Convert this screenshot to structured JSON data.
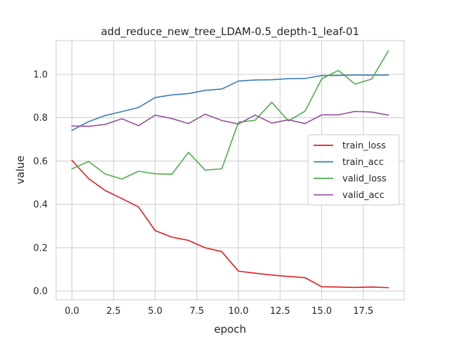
{
  "chart_data": {
    "type": "line",
    "title": "add_reduce_new_tree_LDAM-0.5_depth-1_leaf-01",
    "xlabel": "epoch",
    "ylabel": "value",
    "xlim": [
      -0.95,
      19.95
    ],
    "ylim": [
      -0.04,
      1.155
    ],
    "xticks": [
      0.0,
      2.5,
      5.0,
      7.5,
      10.0,
      12.5,
      15.0,
      17.5
    ],
    "xtick_labels": [
      "0.0",
      "2.5",
      "5.0",
      "7.5",
      "10.0",
      "12.5",
      "15.0",
      "17.5"
    ],
    "yticks": [
      0.0,
      0.2,
      0.4,
      0.6,
      0.8,
      1.0
    ],
    "ytick_labels": [
      "0.0",
      "0.2",
      "0.4",
      "0.6",
      "0.8",
      "1.0"
    ],
    "grid": true,
    "legend_position": "center-right",
    "x": [
      0,
      1,
      2,
      3,
      4,
      5,
      6,
      7,
      8,
      9,
      10,
      11,
      12,
      13,
      14,
      15,
      16,
      17,
      18,
      19
    ],
    "series": [
      {
        "name": "train_loss",
        "color": "#e41a1c",
        "values": [
          0.603,
          0.519,
          0.464,
          0.427,
          0.388,
          0.279,
          0.249,
          0.234,
          0.2,
          0.182,
          0.092,
          0.083,
          0.074,
          0.068,
          0.062,
          0.02,
          0.019,
          0.017,
          0.019,
          0.016
        ]
      },
      {
        "name": "train_acc",
        "color": "#377eb8",
        "values": [
          0.741,
          0.782,
          0.81,
          0.828,
          0.847,
          0.893,
          0.905,
          0.911,
          0.926,
          0.932,
          0.969,
          0.974,
          0.975,
          0.98,
          0.981,
          0.994,
          0.995,
          0.997,
          0.996,
          0.997
        ]
      },
      {
        "name": "valid_loss",
        "color": "#4daf4a",
        "values": [
          0.564,
          0.598,
          0.54,
          0.517,
          0.553,
          0.541,
          0.539,
          0.64,
          0.558,
          0.564,
          0.779,
          0.788,
          0.871,
          0.785,
          0.83,
          0.979,
          1.018,
          0.955,
          0.978,
          1.108
        ]
      },
      {
        "name": "valid_acc",
        "color": "#984ea3",
        "values": [
          0.762,
          0.76,
          0.769,
          0.795,
          0.763,
          0.812,
          0.796,
          0.773,
          0.816,
          0.787,
          0.771,
          0.812,
          0.775,
          0.79,
          0.773,
          0.813,
          0.813,
          0.829,
          0.826,
          0.812
        ]
      }
    ]
  }
}
